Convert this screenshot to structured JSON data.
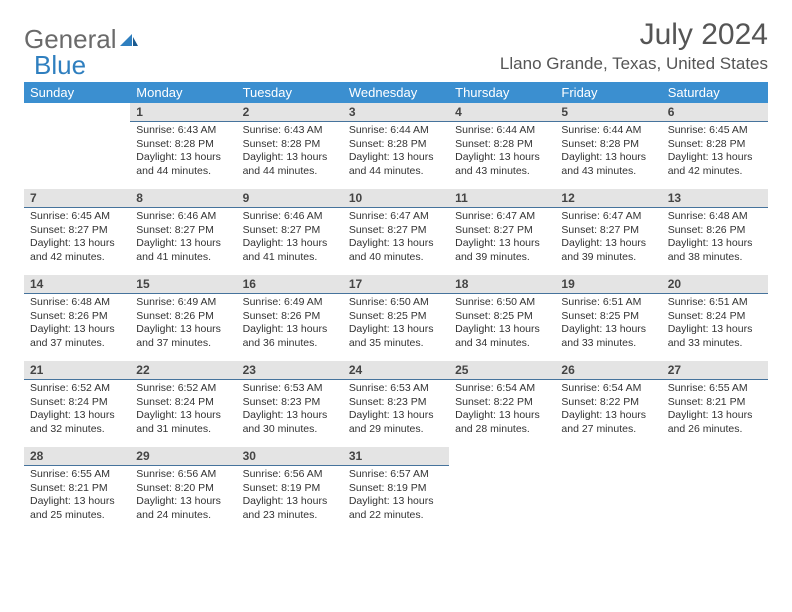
{
  "logo": {
    "text1": "General",
    "text2": "Blue"
  },
  "title": "July 2024",
  "location": "Llano Grande, Texas, United States",
  "weekdays": [
    "Sunday",
    "Monday",
    "Tuesday",
    "Wednesday",
    "Thursday",
    "Friday",
    "Saturday"
  ],
  "colors": {
    "header_bg": "#3b8fd0",
    "header_fg": "#ffffff",
    "daynum_bg": "#e4e4e4",
    "daynum_border": "#46739c",
    "text": "#333333",
    "title_fg": "#555555",
    "logo_gray": "#6a6a6a",
    "logo_blue": "#2f7fbf"
  },
  "typography": {
    "month_title_size": 30,
    "location_size": 17,
    "weekday_size": 13,
    "daynum_size": 12,
    "cell_size": 10.5
  },
  "grid": {
    "rows": 5,
    "cols": 7,
    "start_offset": 1,
    "days_in_month": 31
  },
  "days": [
    {
      "n": 1,
      "sunrise": "6:43 AM",
      "sunset": "8:28 PM",
      "daylight": "13 hours and 44 minutes."
    },
    {
      "n": 2,
      "sunrise": "6:43 AM",
      "sunset": "8:28 PM",
      "daylight": "13 hours and 44 minutes."
    },
    {
      "n": 3,
      "sunrise": "6:44 AM",
      "sunset": "8:28 PM",
      "daylight": "13 hours and 44 minutes."
    },
    {
      "n": 4,
      "sunrise": "6:44 AM",
      "sunset": "8:28 PM",
      "daylight": "13 hours and 43 minutes."
    },
    {
      "n": 5,
      "sunrise": "6:44 AM",
      "sunset": "8:28 PM",
      "daylight": "13 hours and 43 minutes."
    },
    {
      "n": 6,
      "sunrise": "6:45 AM",
      "sunset": "8:28 PM",
      "daylight": "13 hours and 42 minutes."
    },
    {
      "n": 7,
      "sunrise": "6:45 AM",
      "sunset": "8:27 PM",
      "daylight": "13 hours and 42 minutes."
    },
    {
      "n": 8,
      "sunrise": "6:46 AM",
      "sunset": "8:27 PM",
      "daylight": "13 hours and 41 minutes."
    },
    {
      "n": 9,
      "sunrise": "6:46 AM",
      "sunset": "8:27 PM",
      "daylight": "13 hours and 41 minutes."
    },
    {
      "n": 10,
      "sunrise": "6:47 AM",
      "sunset": "8:27 PM",
      "daylight": "13 hours and 40 minutes."
    },
    {
      "n": 11,
      "sunrise": "6:47 AM",
      "sunset": "8:27 PM",
      "daylight": "13 hours and 39 minutes."
    },
    {
      "n": 12,
      "sunrise": "6:47 AM",
      "sunset": "8:27 PM",
      "daylight": "13 hours and 39 minutes."
    },
    {
      "n": 13,
      "sunrise": "6:48 AM",
      "sunset": "8:26 PM",
      "daylight": "13 hours and 38 minutes."
    },
    {
      "n": 14,
      "sunrise": "6:48 AM",
      "sunset": "8:26 PM",
      "daylight": "13 hours and 37 minutes."
    },
    {
      "n": 15,
      "sunrise": "6:49 AM",
      "sunset": "8:26 PM",
      "daylight": "13 hours and 37 minutes."
    },
    {
      "n": 16,
      "sunrise": "6:49 AM",
      "sunset": "8:26 PM",
      "daylight": "13 hours and 36 minutes."
    },
    {
      "n": 17,
      "sunrise": "6:50 AM",
      "sunset": "8:25 PM",
      "daylight": "13 hours and 35 minutes."
    },
    {
      "n": 18,
      "sunrise": "6:50 AM",
      "sunset": "8:25 PM",
      "daylight": "13 hours and 34 minutes."
    },
    {
      "n": 19,
      "sunrise": "6:51 AM",
      "sunset": "8:25 PM",
      "daylight": "13 hours and 33 minutes."
    },
    {
      "n": 20,
      "sunrise": "6:51 AM",
      "sunset": "8:24 PM",
      "daylight": "13 hours and 33 minutes."
    },
    {
      "n": 21,
      "sunrise": "6:52 AM",
      "sunset": "8:24 PM",
      "daylight": "13 hours and 32 minutes."
    },
    {
      "n": 22,
      "sunrise": "6:52 AM",
      "sunset": "8:24 PM",
      "daylight": "13 hours and 31 minutes."
    },
    {
      "n": 23,
      "sunrise": "6:53 AM",
      "sunset": "8:23 PM",
      "daylight": "13 hours and 30 minutes."
    },
    {
      "n": 24,
      "sunrise": "6:53 AM",
      "sunset": "8:23 PM",
      "daylight": "13 hours and 29 minutes."
    },
    {
      "n": 25,
      "sunrise": "6:54 AM",
      "sunset": "8:22 PM",
      "daylight": "13 hours and 28 minutes."
    },
    {
      "n": 26,
      "sunrise": "6:54 AM",
      "sunset": "8:22 PM",
      "daylight": "13 hours and 27 minutes."
    },
    {
      "n": 27,
      "sunrise": "6:55 AM",
      "sunset": "8:21 PM",
      "daylight": "13 hours and 26 minutes."
    },
    {
      "n": 28,
      "sunrise": "6:55 AM",
      "sunset": "8:21 PM",
      "daylight": "13 hours and 25 minutes."
    },
    {
      "n": 29,
      "sunrise": "6:56 AM",
      "sunset": "8:20 PM",
      "daylight": "13 hours and 24 minutes."
    },
    {
      "n": 30,
      "sunrise": "6:56 AM",
      "sunset": "8:19 PM",
      "daylight": "13 hours and 23 minutes."
    },
    {
      "n": 31,
      "sunrise": "6:57 AM",
      "sunset": "8:19 PM",
      "daylight": "13 hours and 22 minutes."
    }
  ],
  "labels": {
    "sunrise": "Sunrise:",
    "sunset": "Sunset:",
    "daylight": "Daylight:"
  }
}
